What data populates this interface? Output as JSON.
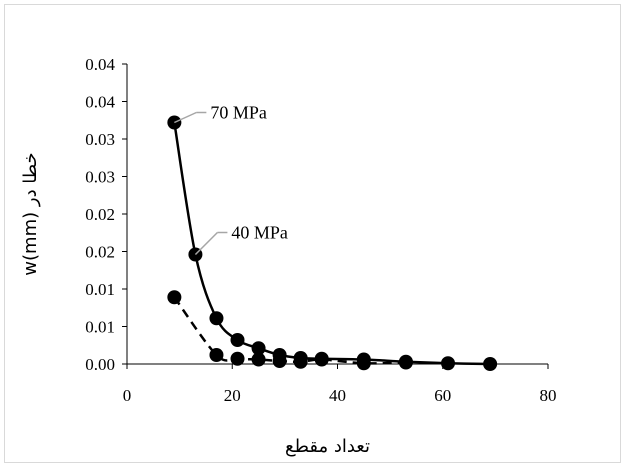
{
  "chart_data": {
    "type": "scatter",
    "title": "",
    "xlabel": "تعداد مقطع",
    "ylabel": "w(mm) خطا در",
    "xlim": [
      0,
      80
    ],
    "ylim": [
      0,
      0.04
    ],
    "x_ticks": [
      0,
      20,
      40,
      60,
      80
    ],
    "x_tick_labels": [
      "0",
      "20",
      "40",
      "60",
      "80"
    ],
    "y_ticks": [
      0,
      0.005,
      0.01,
      0.015,
      0.02,
      0.025,
      0.03,
      0.035,
      0.04
    ],
    "y_tick_labels": [
      "0.00",
      "0.01",
      "0.01",
      "0.02",
      "0.02",
      "0.03",
      "0.03",
      "0.04",
      "0.04"
    ],
    "grid": false,
    "legend": "none",
    "series": [
      {
        "name": "70 MPa",
        "line_style": "solid",
        "color": "#000000",
        "x": [
          9,
          13,
          17,
          21,
          25,
          29,
          33,
          37,
          45,
          53,
          61,
          69
        ],
        "y": [
          0.0322,
          0.0146,
          0.0061,
          0.0032,
          0.0021,
          0.0012,
          0.0008,
          0.0007,
          0.0006,
          0.0003,
          0.0001,
          0.0
        ]
      },
      {
        "name": "40 MPa",
        "line_style": "dashed",
        "color": "#000000",
        "x": [
          9,
          17,
          21,
          25,
          29,
          33,
          37,
          45,
          53
        ],
        "y": [
          0.0089,
          0.0012,
          0.0007,
          0.0006,
          0.0004,
          0.0003,
          0.0006,
          0.0001,
          0.0002
        ]
      }
    ],
    "annotations": [
      {
        "text": "70 MPa",
        "series": 0,
        "point_index": 0
      },
      {
        "text": "40 MPa",
        "series": 0,
        "point_index": 1
      }
    ]
  }
}
